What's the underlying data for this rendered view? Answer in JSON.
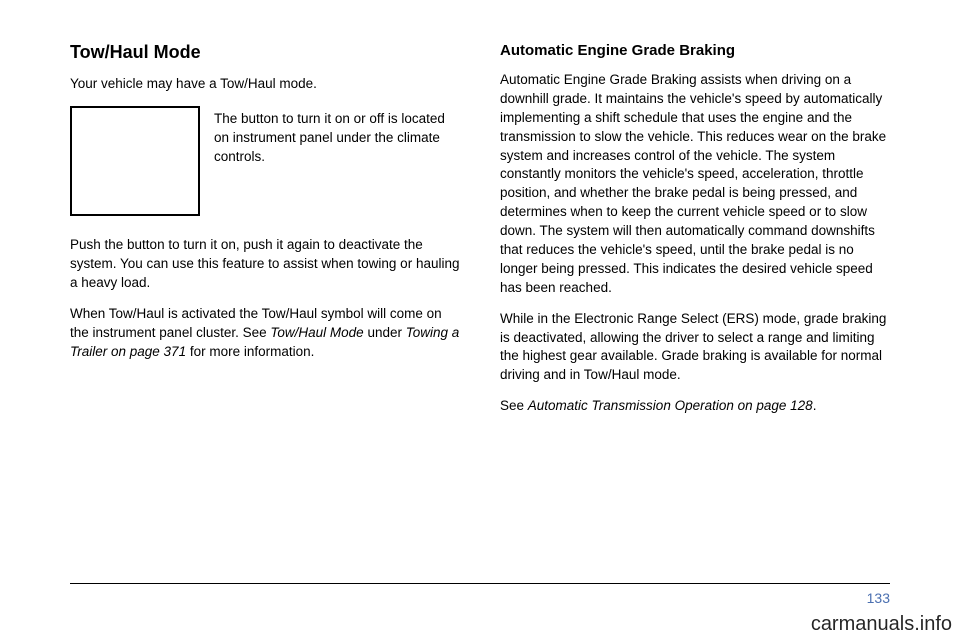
{
  "left": {
    "heading": "Tow/Haul Mode",
    "intro": "Your vehicle may have a Tow/Haul mode.",
    "caption": "The button to turn it on or off is located on instrument panel under the climate controls.",
    "p1": "Push the button to turn it on, push it again to deactivate the system. You can use this feature to assist when towing or hauling a heavy load.",
    "p2a": "When Tow/Haul is activated the Tow/Haul symbol will come on the instrument panel cluster. See ",
    "p2b": "Tow/Haul Mode",
    "p2c": " under ",
    "p2d": "Towing a Trailer on page 371",
    "p2e": " for more information."
  },
  "right": {
    "heading": "Automatic Engine Grade Braking",
    "p1": "Automatic Engine Grade Braking assists when driving on a downhill grade. It maintains the vehicle's speed by automatically implementing a shift schedule that uses the engine and the transmission to slow the vehicle. This reduces wear on the brake system and increases control of the vehicle. The system constantly monitors the vehicle's speed, acceleration, throttle position, and whether the brake pedal is being pressed, and determines when to keep the current vehicle speed or to slow down. The system will then automatically command downshifts that reduces the vehicle's speed, until the brake pedal is no longer being pressed. This indicates the desired vehicle speed has been reached.",
    "p2": "While in the Electronic Range Select (ERS) mode, grade braking is deactivated, allowing the driver to select a range and limiting the highest gear available. Grade braking is available for normal driving and in Tow/Haul mode.",
    "p3a": "See ",
    "p3b": "Automatic Transmission Operation on page 128",
    "p3c": "."
  },
  "page_number": "133",
  "watermark": "carmanuals.info",
  "colors": {
    "page_num": "#4a6fb0",
    "text": "#000000",
    "bg": "#ffffff"
  }
}
